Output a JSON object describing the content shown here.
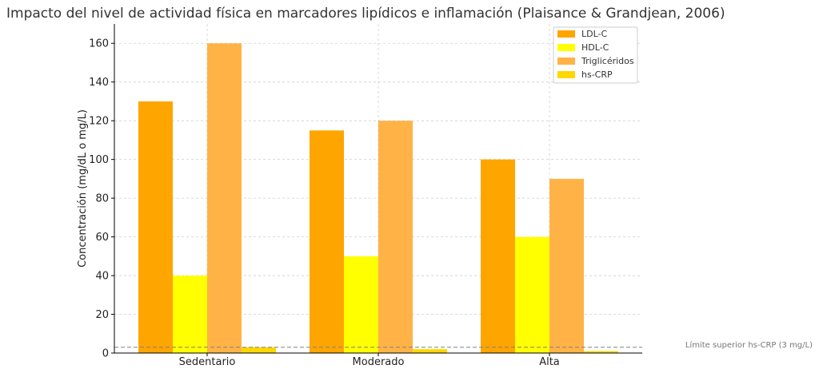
{
  "chart_data": {
    "type": "bar",
    "title": "Impacto del nivel de actividad física en marcadores lipídicos e inflamación (Plaisance & Grandjean, 2006)",
    "xlabel": "",
    "ylabel": "Concentración (mg/dL o mg/L)",
    "categories": [
      "Sedentario",
      "Moderado",
      "Alta"
    ],
    "series": [
      {
        "name": "LDL-C",
        "values": [
          130,
          115,
          100
        ],
        "color": "#ffa500"
      },
      {
        "name": "HDL-C",
        "values": [
          40,
          50,
          60
        ],
        "color": "#ffff00"
      },
      {
        "name": "Triglicéridos",
        "values": [
          160,
          120,
          90
        ],
        "color": "#ffb347"
      },
      {
        "name": "hs-CRP",
        "values": [
          3,
          2,
          1
        ],
        "color": "#ffd700"
      }
    ],
    "ylim": [
      0,
      170
    ],
    "yticks": [
      0,
      20,
      40,
      60,
      80,
      100,
      120,
      140,
      160
    ],
    "grid": true,
    "legend_position": "top-right",
    "reference_line": {
      "y": 3,
      "label": "Límite superior hs-CRP (3 mg/L)",
      "color": "#808080"
    }
  }
}
